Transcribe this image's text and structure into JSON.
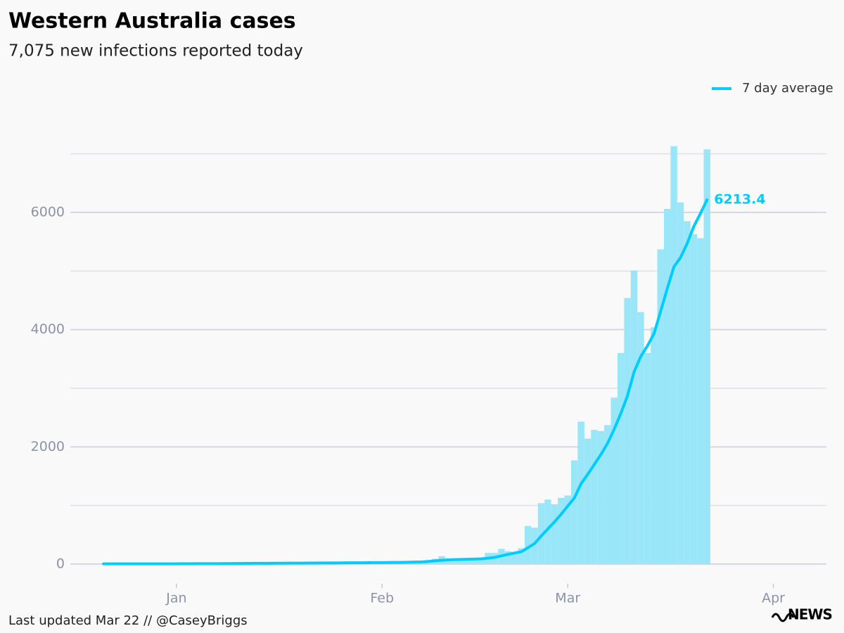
{
  "chart_data": {
    "type": "combo",
    "title": "Western Australia cases",
    "subtitle": "7,075 new infections reported today",
    "footer": "Last updated Mar 22 // @CaseyBriggs",
    "logo": "NEWS",
    "x": [
      -11,
      -10,
      -9,
      -8,
      -7,
      -6,
      -5,
      -4,
      -3,
      -2,
      -1,
      0,
      1,
      2,
      3,
      4,
      5,
      6,
      7,
      8,
      9,
      10,
      11,
      12,
      13,
      14,
      15,
      16,
      17,
      18,
      19,
      20,
      21,
      22,
      23,
      24,
      25,
      26,
      27,
      28,
      29,
      30,
      31,
      32,
      33,
      34,
      35,
      36,
      37,
      38,
      39,
      40,
      41,
      42,
      43,
      44,
      45,
      46,
      47,
      48,
      49,
      50,
      51,
      52,
      53,
      54,
      55,
      56,
      57,
      58,
      59,
      60,
      61,
      62,
      63,
      64,
      65,
      66,
      67,
      68,
      69,
      70,
      71,
      72,
      73,
      74,
      75,
      76,
      77,
      78,
      79,
      80
    ],
    "series": [
      {
        "type": "bar",
        "color": "#99e6f9",
        "values": [
          3,
          2,
          4,
          5,
          3,
          2,
          4,
          6,
          5,
          3,
          4,
          2,
          5,
          6,
          8,
          7,
          9,
          10,
          8,
          11,
          12,
          10,
          12,
          14,
          13,
          15,
          14,
          16,
          15,
          18,
          17,
          16,
          19,
          20,
          18,
          22,
          21,
          24,
          23,
          25,
          22,
          24,
          26,
          28,
          27,
          30,
          20,
          25,
          30,
          40,
          90,
          135,
          70,
          80,
          85,
          80,
          90,
          100,
          190,
          190,
          260,
          220,
          200,
          270,
          650,
          620,
          1040,
          1100,
          1020,
          1130,
          1170,
          1770,
          2430,
          2140,
          2290,
          2270,
          2370,
          2840,
          3600,
          4540,
          5010,
          4300,
          3600,
          4040,
          5370,
          6060,
          7130,
          6170,
          5850,
          5630,
          5560,
          7075
        ]
      },
      {
        "type": "line",
        "name": "7 day average",
        "color": "#00ccff",
        "values": [
          4,
          4,
          4,
          4,
          4,
          4,
          4,
          4,
          4,
          4,
          4,
          5,
          6,
          6,
          7,
          7,
          8,
          8,
          9,
          9,
          10,
          11,
          12,
          13,
          13,
          14,
          15,
          15,
          16,
          16,
          17,
          18,
          18,
          19,
          20,
          20,
          21,
          22,
          22,
          23,
          24,
          25,
          26,
          27,
          28,
          29,
          32,
          35,
          38,
          45,
          55,
          65,
          72,
          76,
          80,
          82,
          85,
          90,
          100,
          115,
          140,
          165,
          190,
          210,
          280,
          350,
          480,
          600,
          720,
          850,
          990,
          1130,
          1370,
          1530,
          1700,
          1870,
          2060,
          2300,
          2570,
          2870,
          3280,
          3540,
          3720,
          3930,
          4310,
          4700,
          5070,
          5230,
          5470,
          5760,
          5980,
          6213.4
        ]
      }
    ],
    "xlim": [
      -16,
      98
    ],
    "xticks": [
      {
        "value": 0,
        "label": "Jan"
      },
      {
        "value": 31,
        "label": "Feb"
      },
      {
        "value": 59,
        "label": "Mar"
      },
      {
        "value": 90,
        "label": "Apr"
      }
    ],
    "ylim": [
      0,
      7500
    ],
    "yticks": [
      0,
      2000,
      4000,
      6000
    ],
    "minor_yticks": [
      1000,
      3000,
      5000,
      7000
    ],
    "grid": true,
    "legend": "top-right"
  }
}
